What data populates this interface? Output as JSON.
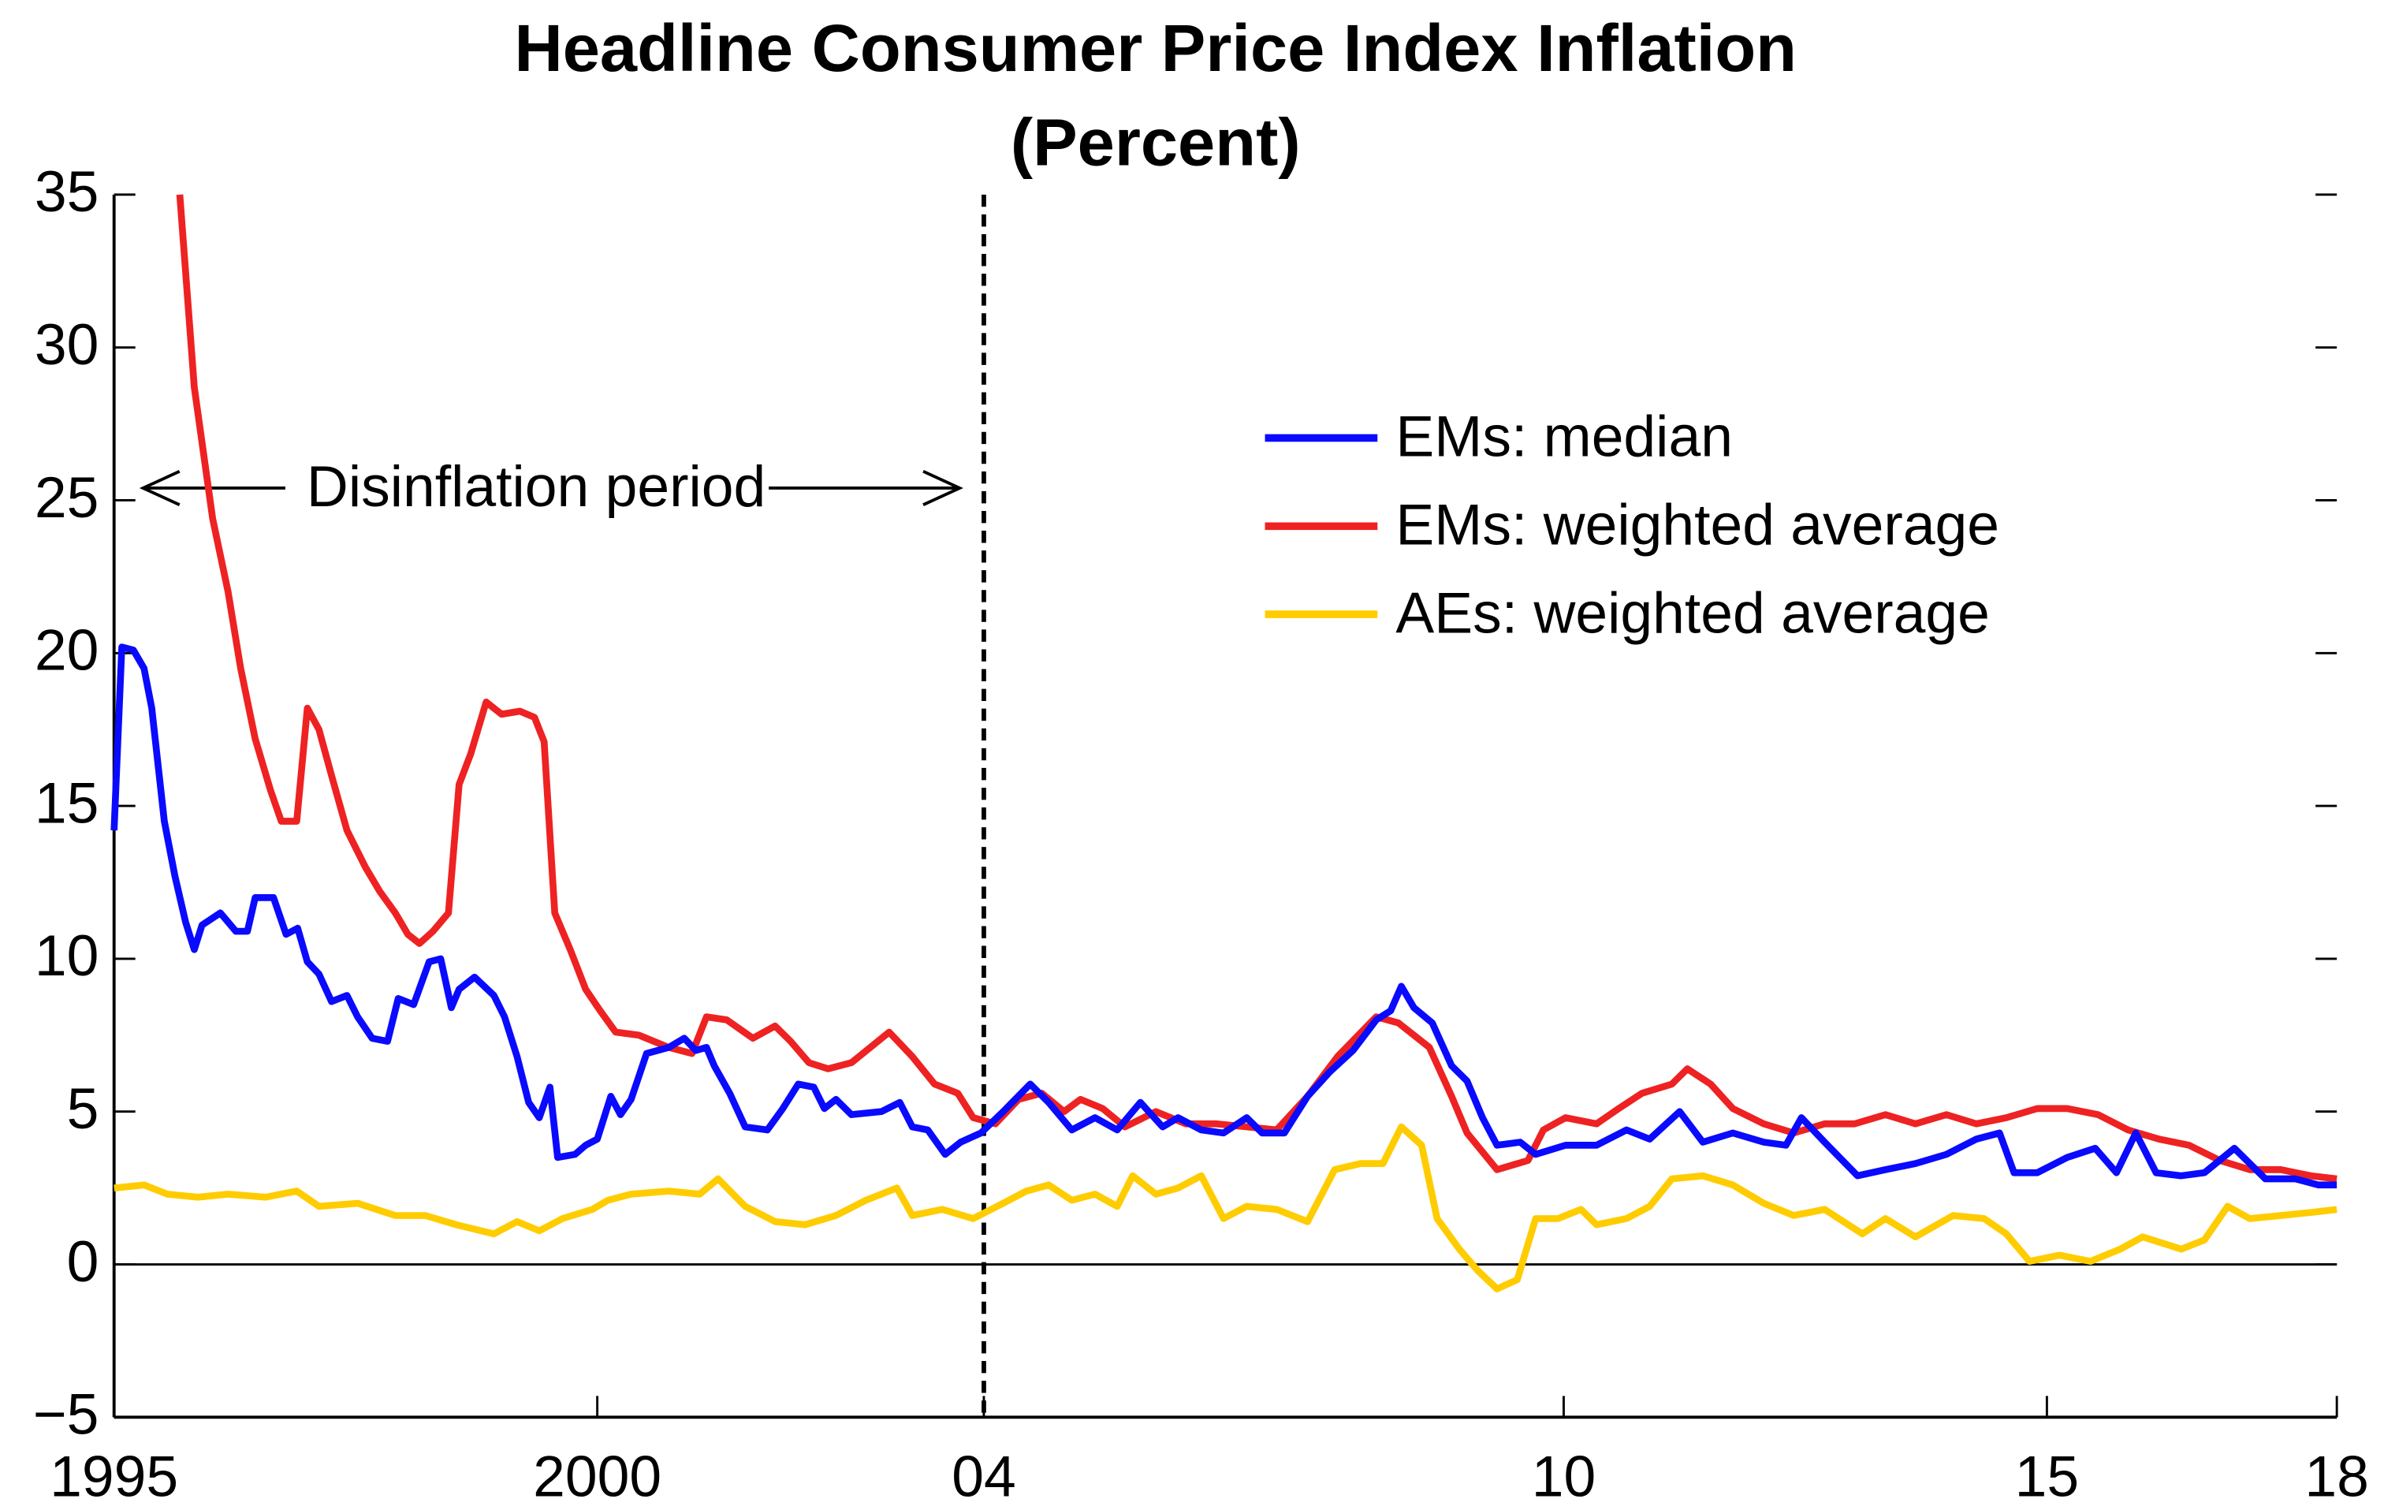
{
  "chart_data": {
    "type": "line",
    "title": "Headline Consumer Price Index Inflation",
    "subtitle": "(Percent)",
    "xlim": [
      1995,
      2018
    ],
    "xticks": [
      1995,
      2000,
      {
        "value": 2004,
        "label": "04"
      },
      {
        "value": 2010,
        "label": "10"
      },
      {
        "value": 2015,
        "label": "15"
      },
      {
        "value": 2018,
        "label": "18"
      }
    ],
    "ylim": [
      -5,
      35
    ],
    "yticks": [
      {
        "value": -5,
        "label": "−5"
      },
      0,
      5,
      10,
      15,
      20,
      25,
      30,
      35
    ],
    "grid": false,
    "legend": "right",
    "vline": 2004,
    "annotation": {
      "text": "Disinflation period",
      "x": [
        1995.3,
        2003.75
      ],
      "y": 25.4
    },
    "series": [
      {
        "name": "EMs: median",
        "color": "#0a0aff",
        "x": [
          1995.0,
          1995.08,
          1995.2,
          1995.31,
          1995.39,
          1995.52,
          1995.63,
          1995.74,
          1995.83,
          1995.91,
          1996.1,
          1996.26,
          1996.38,
          1996.46,
          1996.65,
          1996.78,
          1996.9,
          1997.0,
          1997.12,
          1997.25,
          1997.41,
          1997.52,
          1997.67,
          1997.83,
          1997.94,
          1998.1,
          1998.26,
          1998.38,
          1998.49,
          1998.57,
          1998.73,
          1998.93,
          1999.04,
          1999.17,
          1999.29,
          1999.4,
          1999.51,
          1999.59,
          1999.77,
          1999.88,
          2000.0,
          2000.14,
          2000.24,
          2000.35,
          2000.51,
          2000.74,
          2000.9,
          2001.02,
          2001.13,
          2001.21,
          2001.37,
          2001.53,
          2001.76,
          2001.92,
          2002.08,
          2002.24,
          2002.35,
          2002.47,
          2002.63,
          2002.94,
          2003.13,
          2003.26,
          2003.42,
          2003.6,
          2003.76,
          2003.97,
          2004.2,
          2004.48,
          2004.67,
          2004.91,
          2005.15,
          2005.38,
          2005.62,
          2005.85,
          2006.01,
          2006.25,
          2006.48,
          2006.72,
          2006.88,
          2007.11,
          2007.35,
          2007.58,
          2007.82,
          2008.06,
          2008.21,
          2008.32,
          2008.45,
          2008.64,
          2008.84,
          2009.0,
          2009.16,
          2009.31,
          2009.55,
          2009.71,
          2010.02,
          2010.34,
          2010.65,
          2010.89,
          2011.2,
          2011.44,
          2011.75,
          2012.07,
          2012.3,
          2012.46,
          2012.7,
          2013.04,
          2013.33,
          2013.64,
          2013.96,
          2014.27,
          2014.51,
          2014.66,
          2014.9,
          2015.21,
          2015.5,
          2015.72,
          2015.92,
          2016.13,
          2016.39,
          2016.63,
          2016.94,
          2017.26,
          2017.57,
          2017.81,
          2018.0
        ],
        "values": [
          14.2,
          20.2,
          20.1,
          19.5,
          18.2,
          14.5,
          12.7,
          11.2,
          10.3,
          11.1,
          11.5,
          10.9,
          10.9,
          12.0,
          12.0,
          10.8,
          11.0,
          9.9,
          9.5,
          8.6,
          8.8,
          8.1,
          7.4,
          7.3,
          8.7,
          8.5,
          9.9,
          10.0,
          8.4,
          9.0,
          9.4,
          8.8,
          8.1,
          6.8,
          5.3,
          4.8,
          5.8,
          3.5,
          3.6,
          3.9,
          4.1,
          5.5,
          4.9,
          5.4,
          6.9,
          7.1,
          7.4,
          7.0,
          7.1,
          6.5,
          5.6,
          4.5,
          4.4,
          5.1,
          5.9,
          5.8,
          5.1,
          5.4,
          4.9,
          5.0,
          5.3,
          4.5,
          4.4,
          3.6,
          4.0,
          4.3,
          5.0,
          5.9,
          5.3,
          4.4,
          4.8,
          4.4,
          5.3,
          4.5,
          4.8,
          4.4,
          4.3,
          4.8,
          4.3,
          4.3,
          5.5,
          6.3,
          7.0,
          8.0,
          8.3,
          9.1,
          8.4,
          7.9,
          6.5,
          6.0,
          4.8,
          3.9,
          4.0,
          3.6,
          3.9,
          3.9,
          4.4,
          4.1,
          5.0,
          4.0,
          4.3,
          4.0,
          3.9,
          4.8,
          4.0,
          2.9,
          3.1,
          3.3,
          3.6,
          4.1,
          4.3,
          3.0,
          3.0,
          3.5,
          3.8,
          3.0,
          4.3,
          3.0,
          2.9,
          3.0,
          3.8,
          2.8,
          2.8,
          2.6,
          2.6
        ]
      },
      {
        "name": "EMs: weighted average",
        "color": "#ee2222",
        "x": [
          1995.68,
          1995.83,
          1996.02,
          1996.18,
          1996.31,
          1996.46,
          1996.62,
          1996.73,
          1996.89,
          1997.0,
          1997.12,
          1997.25,
          1997.41,
          1997.6,
          1997.75,
          1997.91,
          1998.04,
          1998.16,
          1998.3,
          1998.46,
          1998.57,
          1998.69,
          1998.85,
          1999.01,
          1999.2,
          1999.35,
          1999.45,
          1999.56,
          1999.72,
          1999.88,
          2000.03,
          2000.19,
          2000.43,
          2000.74,
          2000.98,
          2001.13,
          2001.34,
          2001.61,
          2001.84,
          2002.0,
          2002.19,
          2002.39,
          2002.63,
          2003.02,
          2003.26,
          2003.49,
          2003.73,
          2003.89,
          2004.12,
          2004.36,
          2004.6,
          2004.83,
          2005.0,
          2005.23,
          2005.46,
          2005.78,
          2006.09,
          2006.4,
          2006.72,
          2007.03,
          2007.35,
          2007.66,
          2008.06,
          2008.29,
          2008.61,
          2008.84,
          2009.0,
          2009.31,
          2009.63,
          2009.79,
          2010.02,
          2010.34,
          2010.57,
          2010.81,
          2011.12,
          2011.28,
          2011.52,
          2011.75,
          2012.07,
          2012.38,
          2012.7,
          2013.01,
          2013.33,
          2013.64,
          2013.96,
          2014.27,
          2014.58,
          2014.9,
          2015.21,
          2015.53,
          2015.84,
          2016.16,
          2016.47,
          2016.79,
          2017.1,
          2017.42,
          2017.73,
          2018.0
        ],
        "values": [
          35.0,
          28.7,
          24.4,
          22.0,
          19.5,
          17.2,
          15.5,
          14.5,
          14.5,
          18.2,
          17.5,
          16.0,
          14.2,
          13.0,
          12.2,
          11.5,
          10.8,
          10.5,
          10.9,
          11.5,
          15.7,
          16.7,
          18.4,
          18.0,
          18.1,
          17.9,
          17.1,
          11.5,
          10.3,
          9.0,
          8.3,
          7.6,
          7.5,
          7.1,
          6.9,
          8.1,
          8.0,
          7.4,
          7.8,
          7.3,
          6.6,
          6.4,
          6.6,
          7.6,
          6.8,
          5.9,
          5.6,
          4.8,
          4.6,
          5.4,
          5.6,
          5.0,
          5.4,
          5.1,
          4.5,
          5.0,
          4.6,
          4.6,
          4.5,
          4.4,
          5.5,
          6.8,
          8.1,
          7.9,
          7.1,
          5.5,
          4.3,
          3.1,
          3.4,
          4.4,
          4.8,
          4.6,
          5.1,
          5.6,
          5.9,
          6.4,
          5.9,
          5.1,
          4.6,
          4.3,
          4.6,
          4.6,
          4.9,
          4.6,
          4.9,
          4.6,
          4.8,
          5.1,
          5.1,
          4.9,
          4.4,
          4.1,
          3.9,
          3.4,
          3.1,
          3.1,
          2.9,
          2.8
        ]
      },
      {
        "name": "AEs: weighted average",
        "color": "#ffcc00",
        "x": [
          1995.0,
          1995.31,
          1995.55,
          1995.87,
          1996.18,
          1996.57,
          1996.89,
          1997.12,
          1997.52,
          1997.91,
          1998.22,
          1998.54,
          1998.93,
          1999.17,
          1999.4,
          1999.64,
          1999.95,
          2000.11,
          2000.35,
          2000.74,
          2001.06,
          2001.25,
          2001.53,
          2001.84,
          2002.15,
          2002.47,
          2002.78,
          2003.1,
          2003.26,
          2003.57,
          2003.89,
          2004.2,
          2004.44,
          2004.67,
          2004.91,
          2005.15,
          2005.38,
          2005.54,
          2005.78,
          2006.01,
          2006.25,
          2006.48,
          2006.72,
          2007.03,
          2007.35,
          2007.63,
          2007.9,
          2008.13,
          2008.32,
          2008.53,
          2008.69,
          2008.92,
          2009.11,
          2009.31,
          2009.52,
          2009.71,
          2009.94,
          2010.18,
          2010.34,
          2010.65,
          2010.89,
          2011.12,
          2011.44,
          2011.75,
          2012.07,
          2012.38,
          2012.7,
          2013.09,
          2013.33,
          2013.64,
          2014.03,
          2014.35,
          2014.58,
          2014.82,
          2015.13,
          2015.45,
          2015.76,
          2015.99,
          2016.39,
          2016.63,
          2016.87,
          2017.1,
          2017.42,
          2017.73,
          2018.0
        ],
        "values": [
          2.5,
          2.6,
          2.3,
          2.2,
          2.3,
          2.2,
          2.4,
          1.9,
          2.0,
          1.6,
          1.6,
          1.3,
          1.0,
          1.4,
          1.1,
          1.5,
          1.8,
          2.1,
          2.3,
          2.4,
          2.3,
          2.8,
          1.9,
          1.4,
          1.3,
          1.6,
          2.1,
          2.5,
          1.6,
          1.8,
          1.5,
          2.0,
          2.4,
          2.6,
          2.1,
          2.3,
          1.9,
          2.9,
          2.3,
          2.5,
          2.9,
          1.5,
          1.9,
          1.8,
          1.4,
          3.1,
          3.3,
          3.3,
          4.5,
          3.9,
          1.5,
          0.5,
          -0.2,
          -0.8,
          -0.5,
          1.5,
          1.5,
          1.8,
          1.3,
          1.5,
          1.9,
          2.8,
          2.9,
          2.6,
          2.0,
          1.6,
          1.8,
          1.0,
          1.5,
          0.9,
          1.6,
          1.5,
          1.0,
          0.1,
          0.3,
          0.1,
          0.5,
          0.9,
          0.5,
          0.8,
          1.9,
          1.5,
          1.6,
          1.7,
          1.8
        ]
      }
    ]
  }
}
